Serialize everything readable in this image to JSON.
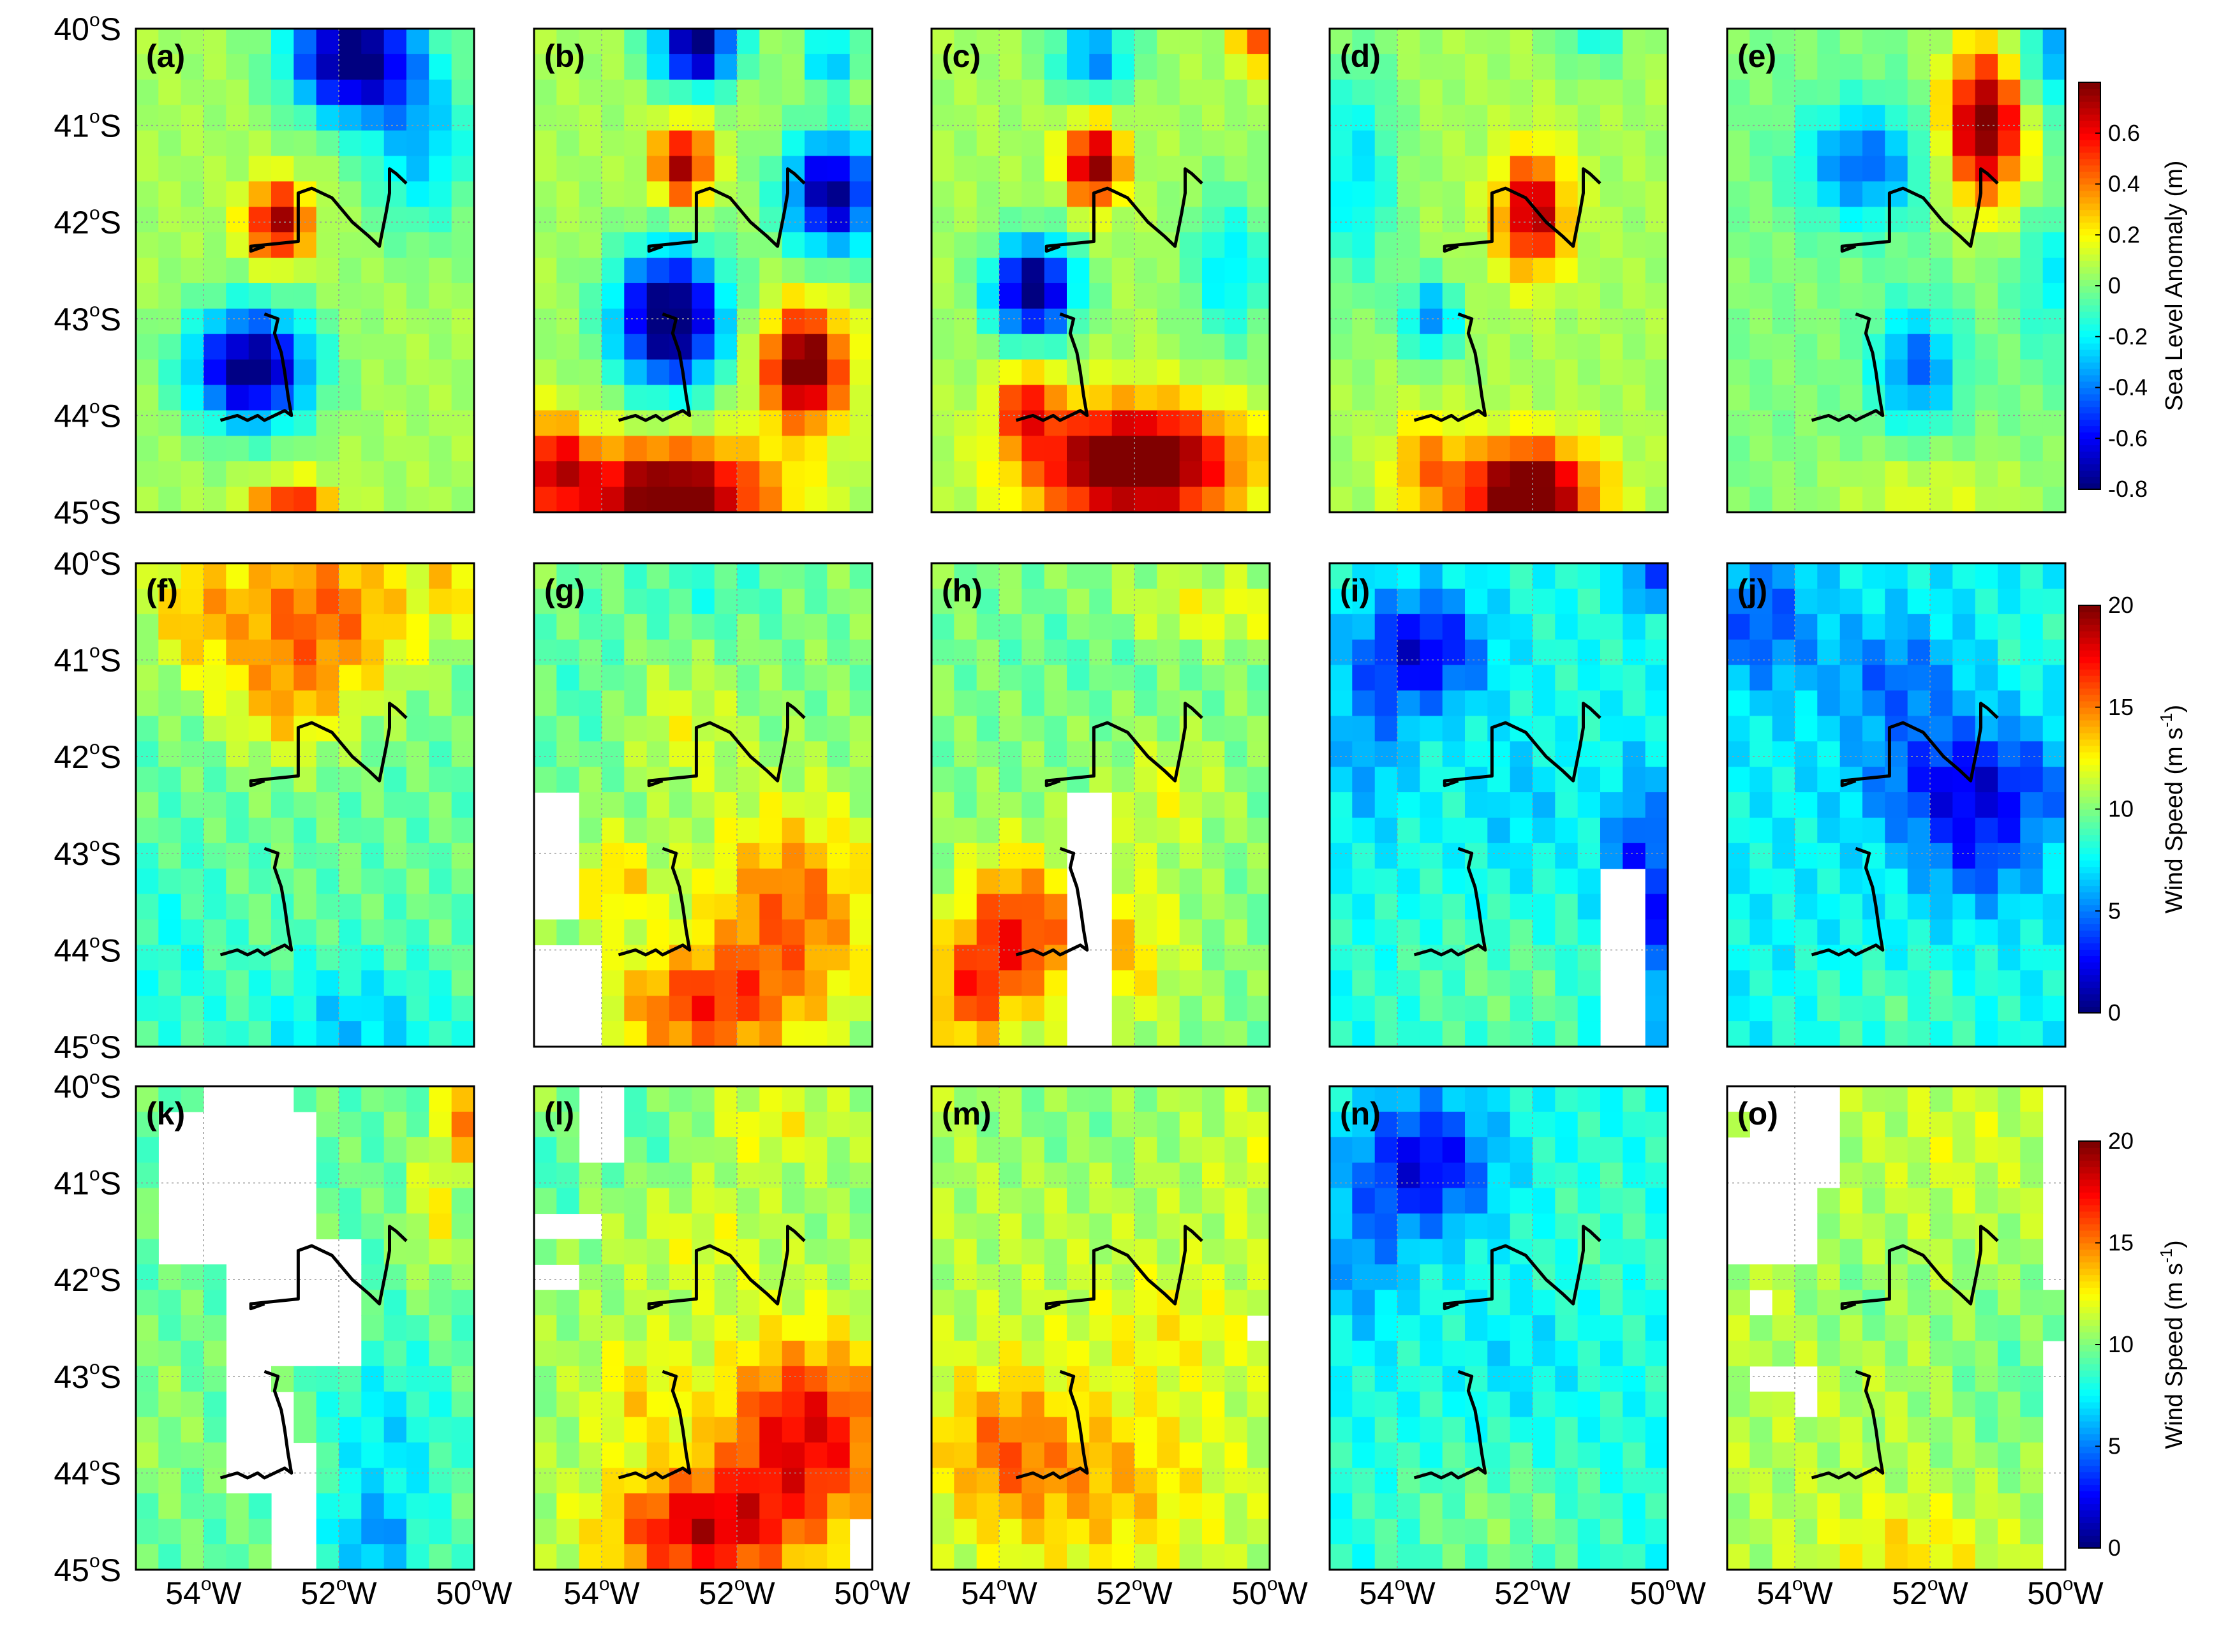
{
  "chart_data": {
    "type": "heatmap",
    "grid": {
      "cols": 15,
      "rows": 19,
      "lon_range": [
        55,
        50
      ],
      "lat_range": [
        40,
        45
      ]
    },
    "x_ticks": [
      {
        "deg": "54",
        "sup": "o",
        "hem": "W"
      },
      {
        "deg": "52",
        "sup": "o",
        "hem": "W"
      },
      {
        "deg": "50",
        "sup": "o",
        "hem": "W"
      }
    ],
    "y_ticks": [
      {
        "deg": "40",
        "sup": "o",
        "hem": "S"
      },
      {
        "deg": "41",
        "sup": "o",
        "hem": "S"
      },
      {
        "deg": "42",
        "sup": "o",
        "hem": "S"
      },
      {
        "deg": "43",
        "sup": "o",
        "hem": "S"
      },
      {
        "deg": "44",
        "sup": "o",
        "hem": "S"
      },
      {
        "deg": "45",
        "sup": "o",
        "hem": "S"
      }
    ],
    "colorbars": [
      {
        "row": 0,
        "label": "Sea Level Anomaly (m)",
        "label_parts": [
          "Sea Level Anomaly (m)",
          "",
          ""
        ],
        "range": [
          -0.8,
          0.8
        ],
        "ticks": [
          "-0.8",
          "-0.6",
          "-0.4",
          "-0.2",
          "0",
          "0.2",
          "0.4",
          "0.6"
        ]
      },
      {
        "row": 1,
        "label": "Wind Speed (m s-1)",
        "label_parts": [
          "Wind Speed (m s",
          "-1",
          ")"
        ],
        "range": [
          0,
          20
        ],
        "ticks": [
          "0",
          "5",
          "10",
          "15",
          "20"
        ]
      },
      {
        "row": 2,
        "label": "Wind Speed (m s-1)",
        "label_parts": [
          "Wind Speed (m s",
          "-1",
          ")"
        ],
        "range": [
          0,
          20
        ],
        "ticks": [
          "0",
          "5",
          "10",
          "15",
          "20"
        ]
      }
    ],
    "track_lon_lat": [
      [
        [
          53.1,
          42.25
        ],
        [
          53.3,
          42.3
        ],
        [
          53.3,
          42.25
        ],
        [
          52.6,
          42.2
        ],
        [
          52.6,
          42.05
        ],
        [
          52.6,
          41.7
        ],
        [
          52.4,
          41.65
        ],
        [
          52.1,
          41.75
        ],
        [
          51.8,
          42.0
        ],
        [
          51.55,
          42.15
        ],
        [
          51.4,
          42.25
        ],
        [
          51.3,
          41.9
        ],
        [
          51.25,
          41.7
        ],
        [
          51.25,
          41.45
        ],
        [
          51.15,
          41.5
        ],
        [
          51.0,
          41.6
        ]
      ],
      [
        [
          53.1,
          42.95
        ],
        [
          52.9,
          43.0
        ],
        [
          52.95,
          43.15
        ],
        [
          52.85,
          43.35
        ],
        [
          52.8,
          43.55
        ],
        [
          52.75,
          43.8
        ],
        [
          52.7,
          44.0
        ],
        [
          52.8,
          43.95
        ],
        [
          53.1,
          44.05
        ],
        [
          53.2,
          44.0
        ],
        [
          53.35,
          44.05
        ],
        [
          53.5,
          44.0
        ],
        [
          53.75,
          44.05
        ]
      ]
    ],
    "panels": [
      {
        "label": "(a)",
        "row": 0,
        "mode": "sla",
        "base": 0.06,
        "blobs": [
          [
            51.8,
            40.3,
            0.9,
            0.6,
            -0.95
          ],
          [
            52.9,
            42.0,
            0.45,
            0.4,
            0.7
          ],
          [
            53.3,
            43.5,
            0.9,
            0.6,
            -0.9
          ],
          [
            52.7,
            45.0,
            0.6,
            0.3,
            0.6
          ],
          [
            50.8,
            41.2,
            0.8,
            0.9,
            -0.35
          ]
        ],
        "mask": null
      },
      {
        "label": "(b)",
        "row": 0,
        "mode": "sla",
        "base": 0.06,
        "blobs": [
          [
            52.6,
            40.2,
            0.6,
            0.4,
            -0.9
          ],
          [
            52.8,
            41.4,
            0.4,
            0.4,
            0.7
          ],
          [
            50.6,
            41.7,
            0.7,
            0.6,
            -0.85
          ],
          [
            53.0,
            43.0,
            0.8,
            0.7,
            -1.0
          ],
          [
            51.0,
            43.5,
            0.6,
            0.6,
            0.85
          ],
          [
            53.0,
            44.8,
            1.5,
            0.5,
            0.85
          ],
          [
            54.7,
            44.5,
            0.5,
            0.5,
            0.5
          ],
          [
            50.6,
            40.3,
            0.4,
            0.3,
            -0.4
          ]
        ],
        "mask": null
      },
      {
        "label": "(c)",
        "row": 0,
        "mode": "sla",
        "base": 0.06,
        "blobs": [
          [
            52.6,
            41.4,
            0.4,
            0.4,
            0.8
          ],
          [
            53.5,
            42.7,
            0.6,
            0.5,
            -0.95
          ],
          [
            52.0,
            44.5,
            1.5,
            0.6,
            0.95
          ],
          [
            53.6,
            43.9,
            0.4,
            0.4,
            0.5
          ],
          [
            52.6,
            40.3,
            0.6,
            0.4,
            -0.45
          ],
          [
            50.2,
            40.1,
            0.3,
            0.3,
            0.45
          ],
          [
            50.6,
            42.5,
            0.6,
            0.8,
            -0.3
          ]
        ],
        "mask": null
      },
      {
        "label": "(d)",
        "row": 0,
        "mode": "sla",
        "base": 0.06,
        "blobs": [
          [
            52.0,
            41.9,
            0.5,
            0.6,
            0.7
          ],
          [
            52.1,
            44.8,
            1.0,
            0.5,
            0.9
          ],
          [
            53.5,
            43.0,
            0.4,
            0.4,
            -0.45
          ],
          [
            54.6,
            41.5,
            0.6,
            1.2,
            -0.3
          ],
          [
            53.6,
            44.5,
            0.5,
            0.5,
            0.3
          ],
          [
            51.1,
            40.0,
            0.5,
            0.4,
            -0.25
          ]
        ],
        "mask": null
      },
      {
        "label": "(e)",
        "row": 0,
        "mode": "sla",
        "base": 0.0,
        "blobs": [
          [
            51.2,
            41.0,
            0.6,
            0.8,
            0.85
          ],
          [
            53.0,
            41.4,
            0.9,
            0.6,
            -0.45
          ],
          [
            52.2,
            43.5,
            0.6,
            0.6,
            -0.45
          ],
          [
            50.2,
            40.3,
            0.5,
            0.6,
            -0.35
          ],
          [
            50.2,
            42.6,
            0.5,
            0.8,
            -0.2
          ],
          [
            52.0,
            44.8,
            1.5,
            0.4,
            0.15
          ]
        ],
        "mask": null
      },
      {
        "label": "(f)",
        "row": 1,
        "mode": "wind",
        "base": 9.5,
        "blobs": [
          [
            52.3,
            40.5,
            1.6,
            0.9,
            6.0
          ],
          [
            54.2,
            40.5,
            0.7,
            0.7,
            3.0
          ],
          [
            51.8,
            44.8,
            1.4,
            0.7,
            -3.0
          ],
          [
            54.5,
            44.0,
            0.8,
            1.0,
            -1.5
          ],
          [
            50.3,
            40.2,
            0.4,
            0.4,
            3.0
          ],
          [
            52.8,
            41.5,
            0.9,
            0.6,
            3.0
          ]
        ],
        "mask": null
      },
      {
        "label": "(g)",
        "row": 1,
        "mode": "wind",
        "base": 10.0,
        "blobs": [
          [
            51.2,
            43.6,
            1.3,
            1.1,
            5.5
          ],
          [
            52.6,
            44.6,
            1.3,
            0.6,
            6.0
          ],
          [
            52.5,
            40.3,
            1.2,
            0.4,
            -1.5
          ],
          [
            54.3,
            41.3,
            0.7,
            0.8,
            -1.0
          ],
          [
            53.8,
            43.3,
            0.6,
            0.5,
            3.5
          ],
          [
            52.8,
            41.7,
            0.8,
            0.6,
            2.0
          ]
        ],
        "mask": [
          [
            54.75,
            43.0,
            0.4,
            0.6
          ],
          [
            54.65,
            44.55,
            0.5,
            0.7
          ]
        ]
      },
      {
        "label": "(h)",
        "row": 1,
        "mode": "wind",
        "base": 10.0,
        "blobs": [
          [
            53.8,
            43.8,
            0.8,
            0.8,
            6.5
          ],
          [
            54.5,
            44.5,
            0.6,
            0.6,
            5.0
          ],
          [
            52.3,
            44.0,
            1.0,
            0.8,
            3.5
          ],
          [
            51.5,
            42.4,
            0.8,
            0.6,
            2.0
          ],
          [
            51.0,
            40.5,
            1.5,
            0.4,
            2.5
          ],
          [
            52.5,
            40.8,
            1.5,
            0.5,
            -1.0
          ]
        ],
        "mask": [
          [
            52.6,
            43.5,
            0.25,
            1.0
          ],
          [
            52.55,
            44.7,
            0.35,
            0.4
          ]
        ]
      },
      {
        "label": "(i)",
        "row": 1,
        "mode": "wind",
        "base": 8.0,
        "blobs": [
          [
            53.6,
            40.9,
            0.9,
            0.6,
            -6.0
          ],
          [
            54.4,
            41.8,
            0.6,
            1.0,
            -2.5
          ],
          [
            50.4,
            43.5,
            0.5,
            1.2,
            -6.0
          ],
          [
            52.5,
            44.4,
            1.5,
            0.7,
            1.5
          ],
          [
            50.3,
            40.2,
            0.3,
            0.3,
            -5.0
          ],
          [
            52.2,
            42.5,
            0.7,
            0.7,
            -1.5
          ]
        ],
        "mask": [
          [
            50.65,
            44.05,
            0.25,
            1.0
          ]
        ]
      },
      {
        "label": "(j)",
        "row": 1,
        "mode": "wind",
        "base": 7.5,
        "blobs": [
          [
            51.4,
            42.3,
            1.4,
            0.6,
            -5.5
          ],
          [
            54.5,
            40.6,
            0.8,
            0.7,
            -3.5
          ],
          [
            52.5,
            41.2,
            1.0,
            0.6,
            -3.0
          ],
          [
            51.3,
            43.1,
            0.8,
            0.5,
            -3.0
          ],
          [
            52.5,
            44.6,
            1.5,
            0.5,
            1.5
          ],
          [
            50.5,
            40.8,
            0.6,
            0.4,
            1.0
          ]
        ],
        "mask": null
      },
      {
        "label": "(k)",
        "row": 2,
        "mode": "wind",
        "base": 9.5,
        "blobs": [
          [
            51.3,
            43.7,
            0.9,
            1.0,
            -2.5
          ],
          [
            51.5,
            44.7,
            0.6,
            0.4,
            -3.5
          ],
          [
            50.2,
            40.3,
            0.3,
            0.5,
            5.5
          ],
          [
            50.6,
            41.3,
            0.4,
            0.7,
            3.0
          ],
          [
            54.6,
            43.5,
            0.5,
            0.8,
            1.0
          ]
        ],
        "mask": [
          [
            53.45,
            40.1,
            0.7,
            0.2
          ],
          [
            53.5,
            41.0,
            1.15,
            0.75
          ],
          [
            52.8,
            42.2,
            1.0,
            0.6
          ],
          [
            53.35,
            43.3,
            0.25,
            0.35
          ],
          [
            53.1,
            43.65,
            0.4,
            0.55
          ],
          [
            52.6,
            44.4,
            0.3,
            0.7
          ]
        ]
      },
      {
        "label": "(l)",
        "row": 2,
        "mode": "wind",
        "base": 10.5,
        "blobs": [
          [
            51.0,
            43.6,
            1.3,
            1.0,
            7.5
          ],
          [
            52.6,
            44.6,
            1.4,
            0.6,
            7.5
          ],
          [
            53.5,
            43.2,
            0.7,
            0.6,
            2.5
          ],
          [
            53.5,
            40.5,
            1.0,
            0.5,
            -1.5
          ],
          [
            54.7,
            41.0,
            0.4,
            0.6,
            -1.5
          ],
          [
            52.5,
            41.6,
            1.0,
            0.6,
            1.5
          ],
          [
            51.5,
            40.4,
            1.0,
            0.4,
            2.0
          ]
        ],
        "mask": [
          [
            54.05,
            40.35,
            0.4,
            0.35
          ],
          [
            54.5,
            41.45,
            0.4,
            0.2
          ],
          [
            54.6,
            42.0,
            0.25,
            0.15
          ],
          [
            50.2,
            44.75,
            0.2,
            0.2
          ]
        ]
      },
      {
        "label": "(m)",
        "row": 2,
        "mode": "wind",
        "base": 11.0,
        "blobs": [
          [
            54.0,
            43.7,
            0.9,
            0.8,
            3.5
          ],
          [
            52.5,
            44.1,
            1.6,
            0.9,
            3.0
          ],
          [
            51.5,
            42.5,
            1.3,
            0.6,
            1.5
          ],
          [
            52.9,
            40.4,
            1.4,
            0.5,
            -1.0
          ],
          [
            50.3,
            40.8,
            0.5,
            0.6,
            0.8
          ]
        ],
        "mask": [
          [
            50.25,
            42.5,
            0.15,
            0.15
          ]
        ]
      },
      {
        "label": "(n)",
        "row": 2,
        "mode": "wind",
        "base": 8.0,
        "blobs": [
          [
            53.6,
            40.8,
            1.0,
            0.7,
            -6.0
          ],
          [
            54.5,
            41.8,
            0.6,
            0.8,
            -2.5
          ],
          [
            52.6,
            44.5,
            1.5,
            0.7,
            2.0
          ],
          [
            51.0,
            41.5,
            0.8,
            0.8,
            0.8
          ],
          [
            52.2,
            42.8,
            0.8,
            0.6,
            -1.0
          ]
        ],
        "mask": null
      },
      {
        "label": "(o)",
        "row": 2,
        "mode": "wind",
        "base": 11.0,
        "blobs": [
          [
            52.3,
            44.8,
            1.2,
            0.5,
            2.0
          ],
          [
            50.8,
            43.0,
            1.0,
            1.0,
            -1.5
          ],
          [
            53.0,
            42.2,
            0.8,
            0.5,
            -1.0
          ],
          [
            51.6,
            40.6,
            0.8,
            0.5,
            0.8
          ]
        ],
        "mask": [
          [
            54.8,
            40.0,
            0.3,
            0.3
          ],
          [
            53.9,
            40.4,
            0.7,
            0.6
          ],
          [
            54.3,
            41.2,
            0.7,
            0.6
          ],
          [
            52.95,
            41.1,
            0.1,
            0.15
          ],
          [
            50.15,
            41.0,
            0.2,
            1.0
          ],
          [
            54.5,
            42.2,
            0.2,
            0.15
          ],
          [
            54.2,
            43.05,
            0.4,
            0.15
          ],
          [
            53.8,
            43.3,
            0.2,
            0.2
          ],
          [
            50.3,
            43.1,
            0.15,
            0.4
          ],
          [
            50.12,
            43.8,
            0.1,
            1.2
          ]
        ]
      }
    ]
  }
}
